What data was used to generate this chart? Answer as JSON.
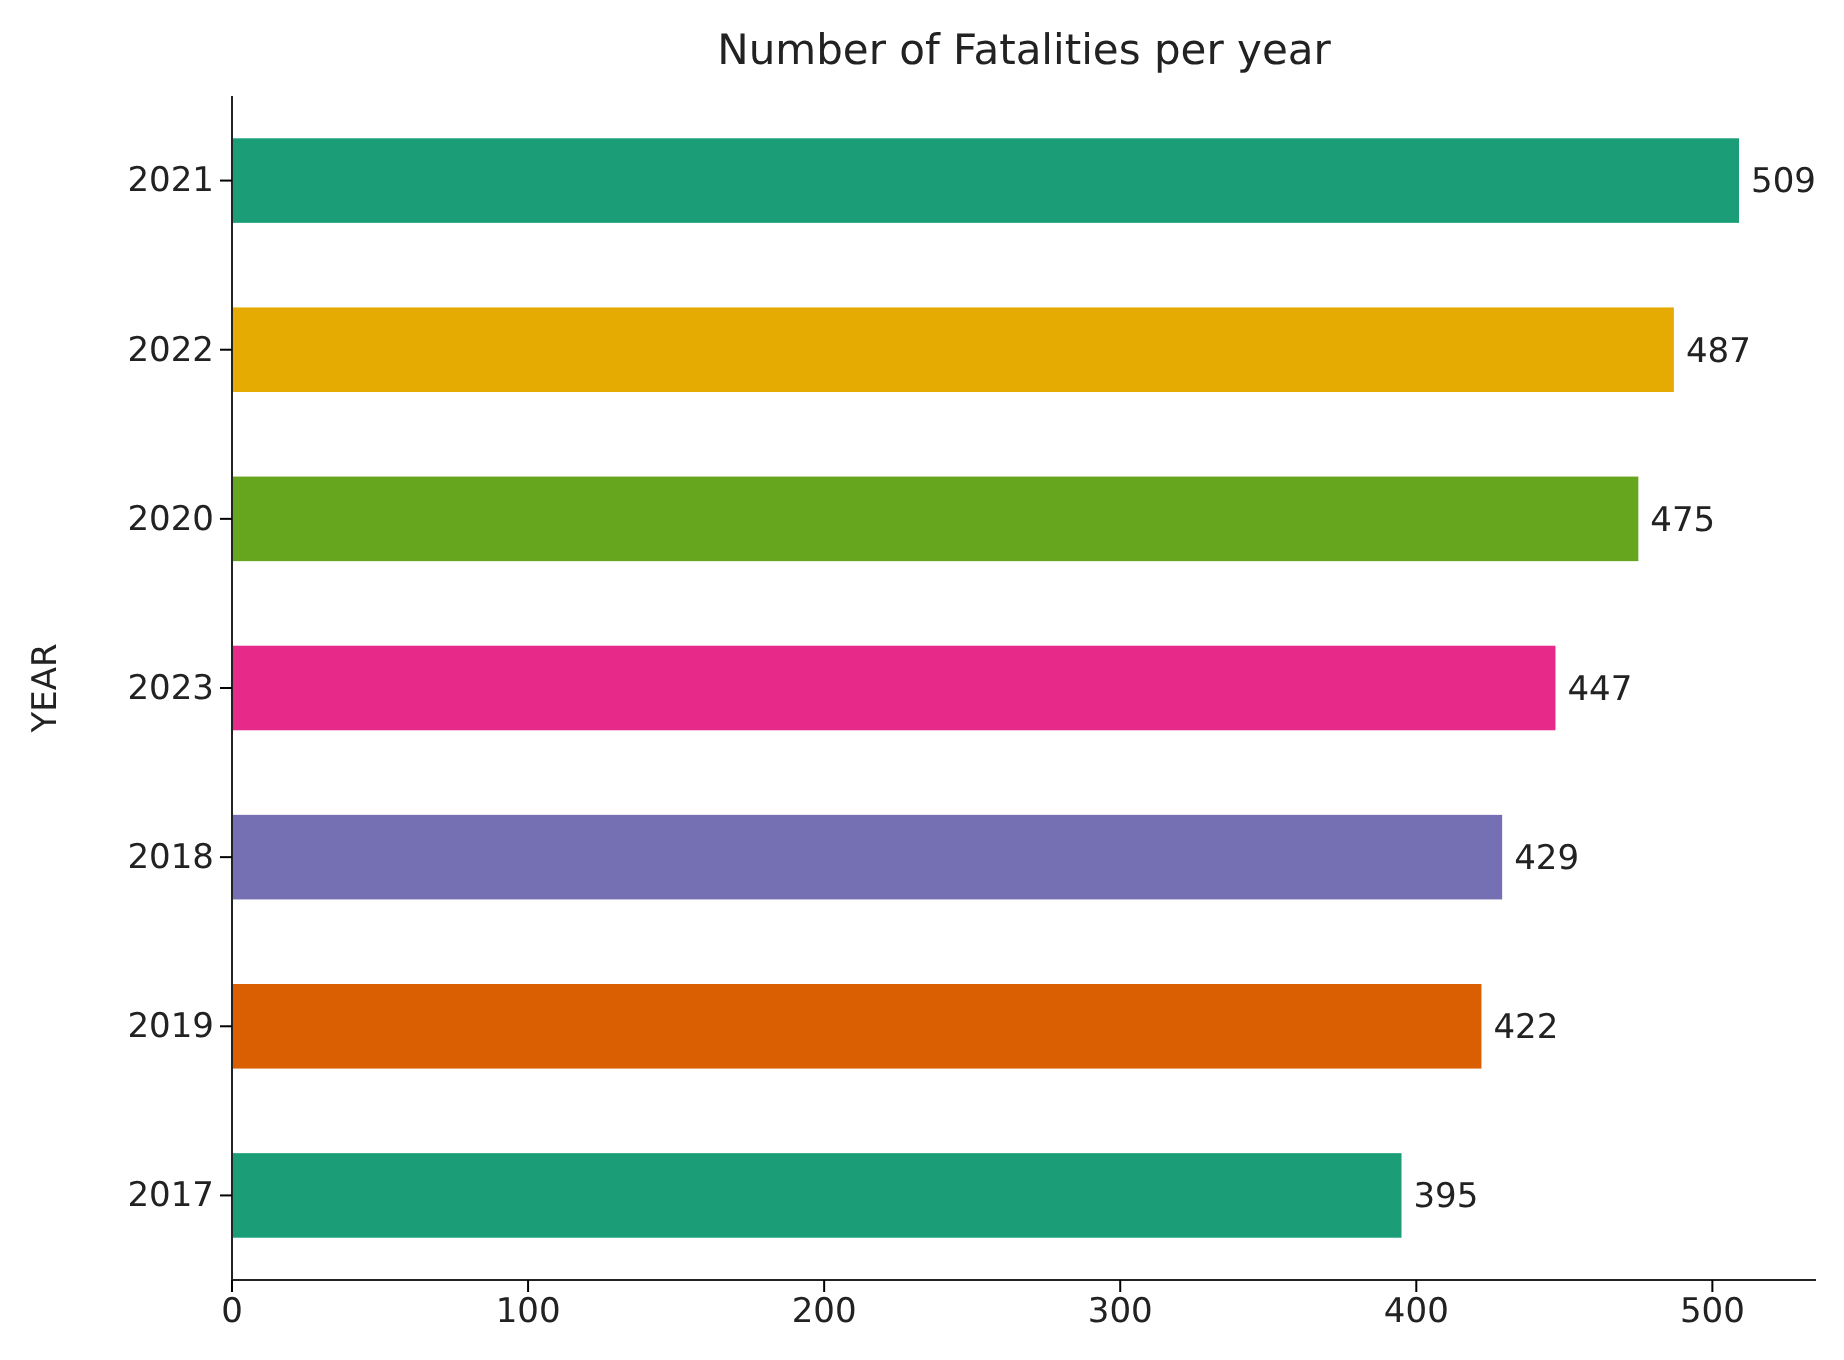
{
  "chart_data": {
    "type": "bar",
    "orientation": "horizontal",
    "title": "Number of Fatalities per year",
    "ylabel": "YEAR",
    "categories": [
      "2021",
      "2022",
      "2020",
      "2023",
      "2018",
      "2019",
      "2017"
    ],
    "values": [
      509,
      487,
      475,
      447,
      429,
      422,
      395
    ],
    "colors": [
      "#1b9e77",
      "#e6ab02",
      "#66a61e",
      "#e7298a",
      "#7570b3",
      "#d95f02",
      "#1b9e77"
    ],
    "xlim": [
      0,
      535
    ],
    "xticks": [
      0,
      100,
      200,
      300,
      400,
      500
    ],
    "data_labels": true
  }
}
